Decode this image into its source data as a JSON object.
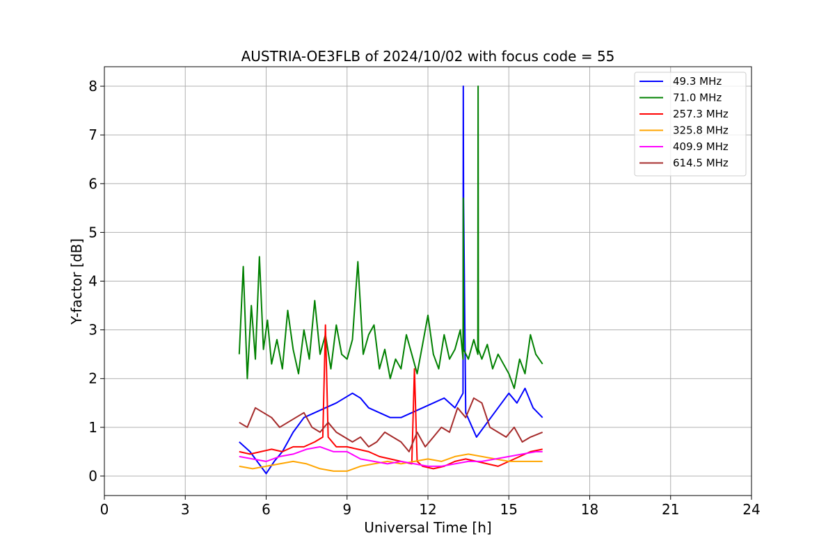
{
  "chart_data": {
    "type": "line",
    "title": "AUSTRIA-OE3FLB of 2024/10/02 with focus code = 55",
    "xlabel": "Universal Time [h]",
    "ylabel": "Y-factor [dB]",
    "xlim": [
      0,
      24
    ],
    "ylim": [
      -0.4,
      8.4
    ],
    "xticks": [
      0,
      3,
      6,
      9,
      12,
      15,
      18,
      21,
      24
    ],
    "yticks": [
      0,
      1,
      2,
      3,
      4,
      5,
      6,
      7,
      8
    ],
    "grid": true,
    "legend_position": "top-right",
    "series": [
      {
        "name": " 49.3 MHz",
        "color": "#0000ff",
        "x": [
          5.0,
          5.4,
          5.8,
          6.0,
          6.3,
          6.6,
          7.0,
          7.4,
          7.8,
          8.2,
          8.6,
          8.9,
          9.2,
          9.5,
          9.8,
          10.2,
          10.6,
          11.0,
          11.4,
          11.8,
          12.2,
          12.6,
          13.0,
          13.3,
          13.31,
          13.32,
          13.4,
          13.8,
          14.2,
          14.6,
          15.0,
          15.3,
          15.6,
          15.9,
          16.25
        ],
        "y": [
          0.7,
          0.5,
          0.2,
          0.05,
          0.3,
          0.5,
          0.9,
          1.2,
          1.3,
          1.4,
          1.5,
          1.6,
          1.7,
          1.6,
          1.4,
          1.3,
          1.2,
          1.2,
          1.3,
          1.4,
          1.5,
          1.6,
          1.4,
          1.7,
          8.0,
          5.7,
          1.3,
          0.8,
          1.1,
          1.4,
          1.7,
          1.5,
          1.8,
          1.4,
          1.2
        ]
      },
      {
        "name": " 71.0 MHz",
        "color": "#008000",
        "x": [
          5.0,
          5.15,
          5.3,
          5.45,
          5.6,
          5.75,
          5.9,
          6.05,
          6.2,
          6.4,
          6.6,
          6.8,
          7.0,
          7.2,
          7.4,
          7.6,
          7.8,
          8.0,
          8.2,
          8.4,
          8.6,
          8.8,
          9.0,
          9.2,
          9.4,
          9.6,
          9.8,
          10.0,
          10.2,
          10.4,
          10.6,
          10.8,
          11.0,
          11.2,
          11.4,
          11.6,
          11.8,
          12.0,
          12.2,
          12.4,
          12.6,
          12.8,
          13.0,
          13.2,
          13.3,
          13.31,
          13.32,
          13.5,
          13.7,
          13.85,
          13.86,
          13.87,
          14.0,
          14.2,
          14.4,
          14.6,
          14.8,
          15.0,
          15.2,
          15.4,
          15.6,
          15.8,
          16.0,
          16.25
        ],
        "y": [
          2.5,
          4.3,
          2.0,
          3.5,
          2.4,
          4.5,
          2.6,
          3.2,
          2.3,
          2.8,
          2.2,
          3.4,
          2.6,
          2.1,
          3.0,
          2.4,
          3.6,
          2.5,
          2.9,
          2.2,
          3.1,
          2.5,
          2.4,
          2.8,
          4.4,
          2.5,
          2.9,
          3.1,
          2.2,
          2.6,
          2.0,
          2.4,
          2.2,
          2.9,
          2.5,
          2.1,
          2.7,
          3.3,
          2.5,
          2.2,
          2.9,
          2.4,
          2.6,
          3.0,
          2.4,
          5.7,
          2.6,
          2.4,
          2.8,
          2.5,
          8.0,
          2.6,
          2.4,
          2.7,
          2.2,
          2.5,
          2.3,
          2.1,
          1.8,
          2.4,
          2.1,
          2.9,
          2.5,
          2.3
        ]
      },
      {
        "name": "257.3 MHz",
        "color": "#ff0000",
        "x": [
          5.0,
          5.4,
          5.8,
          6.2,
          6.6,
          7.0,
          7.4,
          7.8,
          8.1,
          8.2,
          8.3,
          8.6,
          9.0,
          9.4,
          9.8,
          10.2,
          10.6,
          11.0,
          11.4,
          11.5,
          11.6,
          11.8,
          12.2,
          12.6,
          13.0,
          13.4,
          13.8,
          14.2,
          14.6,
          15.0,
          15.4,
          15.8,
          16.25
        ],
        "y": [
          0.5,
          0.45,
          0.5,
          0.55,
          0.5,
          0.6,
          0.6,
          0.7,
          0.8,
          3.1,
          0.8,
          0.6,
          0.6,
          0.55,
          0.5,
          0.4,
          0.35,
          0.3,
          0.25,
          2.2,
          0.3,
          0.2,
          0.15,
          0.2,
          0.3,
          0.35,
          0.3,
          0.25,
          0.2,
          0.3,
          0.4,
          0.5,
          0.55
        ]
      },
      {
        "name": "325.8 MHz",
        "color": "#ffa500",
        "x": [
          5.0,
          5.5,
          6.0,
          6.5,
          7.0,
          7.5,
          8.0,
          8.5,
          9.0,
          9.5,
          10.0,
          10.5,
          11.0,
          11.5,
          12.0,
          12.5,
          13.0,
          13.5,
          14.0,
          14.5,
          15.0,
          15.5,
          16.0,
          16.25
        ],
        "y": [
          0.2,
          0.15,
          0.2,
          0.25,
          0.3,
          0.25,
          0.15,
          0.1,
          0.1,
          0.2,
          0.25,
          0.3,
          0.25,
          0.3,
          0.35,
          0.3,
          0.4,
          0.45,
          0.4,
          0.35,
          0.3,
          0.3,
          0.3,
          0.3
        ]
      },
      {
        "name": "409.9 MHz",
        "color": "#ff00ff",
        "x": [
          5.0,
          5.5,
          6.0,
          6.5,
          7.0,
          7.5,
          8.0,
          8.5,
          9.0,
          9.5,
          10.0,
          10.5,
          11.0,
          11.5,
          12.0,
          12.5,
          13.0,
          13.5,
          14.0,
          14.5,
          15.0,
          15.5,
          16.0,
          16.25
        ],
        "y": [
          0.4,
          0.35,
          0.3,
          0.4,
          0.45,
          0.55,
          0.6,
          0.5,
          0.5,
          0.35,
          0.3,
          0.25,
          0.3,
          0.25,
          0.2,
          0.2,
          0.25,
          0.3,
          0.3,
          0.35,
          0.4,
          0.45,
          0.5,
          0.5
        ]
      },
      {
        "name": "614.5 MHz",
        "color": "#a52a2a",
        "x": [
          5.0,
          5.3,
          5.6,
          5.9,
          6.2,
          6.5,
          6.8,
          7.1,
          7.4,
          7.7,
          8.0,
          8.3,
          8.6,
          8.9,
          9.2,
          9.5,
          9.8,
          10.1,
          10.4,
          10.7,
          11.0,
          11.3,
          11.6,
          11.9,
          12.2,
          12.5,
          12.8,
          13.1,
          13.4,
          13.7,
          14.0,
          14.3,
          14.6,
          14.9,
          15.2,
          15.5,
          15.8,
          16.25
        ],
        "y": [
          1.1,
          1.0,
          1.4,
          1.3,
          1.2,
          1.0,
          1.1,
          1.2,
          1.3,
          1.0,
          0.9,
          1.1,
          0.9,
          0.8,
          0.7,
          0.8,
          0.6,
          0.7,
          0.9,
          0.8,
          0.7,
          0.5,
          0.9,
          0.6,
          0.8,
          1.0,
          0.9,
          1.4,
          1.2,
          1.6,
          1.5,
          1.0,
          0.9,
          0.8,
          1.0,
          0.7,
          0.8,
          0.9
        ]
      }
    ]
  }
}
